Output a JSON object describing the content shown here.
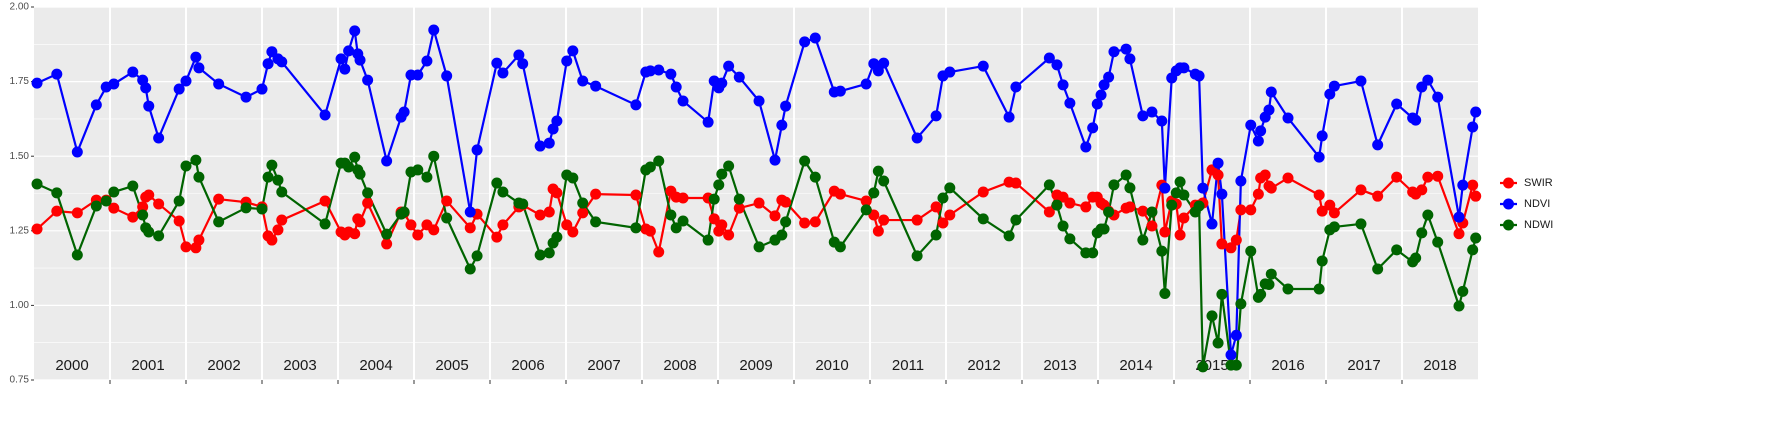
{
  "chart_data": {
    "type": "line",
    "x": [
      2000.04,
      2000.3,
      2000.57,
      2000.82,
      2000.95,
      2001.05,
      2001.3,
      2001.43,
      2001.47,
      2001.51,
      2001.64,
      2001.91,
      2002.0,
      2002.13,
      2002.17,
      2002.43,
      2002.79,
      2003.0,
      2003.08,
      2003.13,
      2003.21,
      2003.26,
      2003.83,
      2004.04,
      2004.09,
      2004.14,
      2004.22,
      2004.26,
      2004.29,
      2004.39,
      2004.64,
      2004.83,
      2004.87,
      2004.96,
      2005.05,
      2005.17,
      2005.26,
      2005.43,
      2005.74,
      2005.83,
      2006.09,
      2006.17,
      2006.38,
      2006.43,
      2006.66,
      2006.78,
      2006.83,
      2006.88,
      2007.01,
      2007.09,
      2007.22,
      2007.39,
      2007.92,
      2008.05,
      2008.11,
      2008.22,
      2008.38,
      2008.45,
      2008.54,
      2008.87,
      2008.95,
      2009.01,
      2009.05,
      2009.14,
      2009.28,
      2009.54,
      2009.75,
      2009.84,
      2009.89,
      2010.14,
      2010.28,
      2010.53,
      2010.61,
      2010.95,
      2011.05,
      2011.11,
      2011.18,
      2011.62,
      2011.87,
      2011.96,
      2012.05,
      2012.49,
      2012.83,
      2012.92,
      2013.36,
      2013.46,
      2013.54,
      2013.63,
      2013.84,
      2013.93,
      2013.99,
      2014.04,
      2014.08,
      2014.14,
      2014.21,
      2014.37,
      2014.42,
      2014.59,
      2014.71,
      2014.84,
      2014.88,
      2014.97,
      2015.03,
      2015.08,
      2015.13,
      2015.28,
      2015.33,
      2015.38,
      2015.5,
      2015.58,
      2015.63,
      2015.75,
      2015.82,
      2015.88,
      2016.01,
      2016.11,
      2016.14,
      2016.2,
      2016.25,
      2016.28,
      2016.5,
      2016.91,
      2016.95,
      2017.05,
      2017.11,
      2017.46,
      2017.68,
      2017.93,
      2018.14,
      2018.18,
      2018.26,
      2018.34,
      2018.47,
      2018.75,
      2018.8,
      2018.93,
      2018.97
    ],
    "series": [
      {
        "name": "SWIR",
        "color": "#ff0000",
        "values": [
          1.256,
          1.316,
          1.31,
          1.353,
          1.353,
          1.326,
          1.296,
          1.33,
          1.363,
          1.37,
          1.34,
          1.283,
          1.196,
          1.193,
          1.219,
          1.356,
          1.346,
          1.33,
          1.233,
          1.219,
          1.253,
          1.286,
          1.35,
          1.246,
          1.236,
          1.246,
          1.24,
          1.29,
          1.28,
          1.343,
          1.206,
          1.313,
          1.31,
          1.27,
          1.236,
          1.27,
          1.253,
          1.35,
          1.26,
          1.306,
          1.229,
          1.27,
          1.33,
          1.336,
          1.303,
          1.313,
          1.39,
          1.377,
          1.27,
          1.246,
          1.31,
          1.373,
          1.37,
          1.256,
          1.249,
          1.179,
          1.383,
          1.363,
          1.36,
          1.36,
          1.29,
          1.249,
          1.27,
          1.236,
          1.326,
          1.343,
          1.3,
          1.353,
          1.346,
          1.276,
          1.28,
          1.383,
          1.373,
          1.35,
          1.303,
          1.249,
          1.286,
          1.286,
          1.33,
          1.276,
          1.303,
          1.38,
          1.413,
          1.41,
          1.313,
          1.37,
          1.363,
          1.343,
          1.33,
          1.363,
          1.363,
          1.343,
          1.336,
          1.316,
          1.303,
          1.326,
          1.33,
          1.316,
          1.266,
          1.403,
          1.246,
          1.35,
          1.34,
          1.236,
          1.293,
          1.336,
          1.336,
          1.343,
          1.454,
          1.437,
          1.206,
          1.193,
          1.219,
          1.32,
          1.32,
          1.373,
          1.427,
          1.437,
          1.4,
          1.393,
          1.427,
          1.37,
          1.316,
          1.336,
          1.31,
          1.387,
          1.366,
          1.43,
          1.38,
          1.373,
          1.387,
          1.43,
          1.433,
          1.24,
          1.276,
          1.403,
          1.366
        ]
      },
      {
        "name": "NDVI",
        "color": "#0000ff",
        "values": [
          1.745,
          1.775,
          1.514,
          1.672,
          1.732,
          1.742,
          1.782,
          1.755,
          1.729,
          1.668,
          1.561,
          1.725,
          1.752,
          1.832,
          1.796,
          1.742,
          1.698,
          1.725,
          1.81,
          1.85,
          1.826,
          1.816,
          1.638,
          1.826,
          1.792,
          1.853,
          1.92,
          1.843,
          1.822,
          1.755,
          1.484,
          1.631,
          1.648,
          1.772,
          1.772,
          1.819,
          1.923,
          1.769,
          1.313,
          1.521,
          1.812,
          1.779,
          1.839,
          1.81,
          1.534,
          1.544,
          1.591,
          1.618,
          1.819,
          1.853,
          1.752,
          1.735,
          1.672,
          1.782,
          1.786,
          1.789,
          1.775,
          1.732,
          1.685,
          1.614,
          1.752,
          1.729,
          1.745,
          1.802,
          1.765,
          1.685,
          1.487,
          1.604,
          1.668,
          1.883,
          1.896,
          1.715,
          1.718,
          1.742,
          1.81,
          1.786,
          1.812,
          1.561,
          1.635,
          1.769,
          1.782,
          1.802,
          1.631,
          1.732,
          1.829,
          1.806,
          1.739,
          1.678,
          1.531,
          1.595,
          1.675,
          1.705,
          1.739,
          1.765,
          1.85,
          1.859,
          1.826,
          1.635,
          1.648,
          1.618,
          1.393,
          1.762,
          1.786,
          1.796,
          1.796,
          1.775,
          1.769,
          1.393,
          1.273,
          1.477,
          1.373,
          0.834,
          0.9,
          1.417,
          1.604,
          1.551,
          1.585,
          1.631,
          1.655,
          1.715,
          1.628,
          1.497,
          1.568,
          1.708,
          1.735,
          1.752,
          1.538,
          1.675,
          1.628,
          1.621,
          1.732,
          1.755,
          1.698,
          1.296,
          1.403,
          1.598,
          1.648
        ]
      },
      {
        "name": "NDWI",
        "color": "#006400",
        "values": [
          1.407,
          1.377,
          1.169,
          1.333,
          1.35,
          1.38,
          1.4,
          1.303,
          1.26,
          1.246,
          1.233,
          1.35,
          1.467,
          1.487,
          1.43,
          1.28,
          1.327,
          1.323,
          1.43,
          1.47,
          1.42,
          1.38,
          1.273,
          1.477,
          1.477,
          1.464,
          1.497,
          1.454,
          1.44,
          1.377,
          1.239,
          1.306,
          1.313,
          1.447,
          1.454,
          1.43,
          1.5,
          1.293,
          1.122,
          1.166,
          1.41,
          1.38,
          1.343,
          1.34,
          1.169,
          1.176,
          1.209,
          1.229,
          1.437,
          1.427,
          1.343,
          1.28,
          1.26,
          1.454,
          1.464,
          1.484,
          1.303,
          1.26,
          1.283,
          1.219,
          1.356,
          1.404,
          1.44,
          1.467,
          1.356,
          1.196,
          1.219,
          1.236,
          1.28,
          1.484,
          1.43,
          1.212,
          1.196,
          1.32,
          1.377,
          1.45,
          1.417,
          1.166,
          1.236,
          1.36,
          1.394,
          1.29,
          1.233,
          1.286,
          1.404,
          1.336,
          1.266,
          1.223,
          1.176,
          1.176,
          1.243,
          1.256,
          1.256,
          1.313,
          1.404,
          1.437,
          1.394,
          1.219,
          1.313,
          1.182,
          1.04,
          1.336,
          1.377,
          1.414,
          1.37,
          1.313,
          1.333,
          0.794,
          0.965,
          0.874,
          1.037,
          0.8,
          0.8,
          1.005,
          1.182,
          1.027,
          1.037,
          1.072,
          1.07,
          1.105,
          1.055,
          1.055,
          1.149,
          1.253,
          1.263,
          1.273,
          1.122,
          1.186,
          1.146,
          1.159,
          1.243,
          1.303,
          1.212,
          0.998,
          1.047,
          1.186,
          1.226
        ]
      }
    ],
    "year_labels": [
      "2000",
      "2001",
      "2002",
      "2003",
      "2004",
      "2005",
      "2006",
      "2007",
      "2008",
      "2009",
      "2010",
      "2011",
      "2012",
      "2013",
      "2014",
      "2015",
      "2016",
      "2017",
      "2018"
    ],
    "xlim": [
      2000,
      2019
    ],
    "xticks": [
      2001,
      2002,
      2003,
      2004,
      2005,
      2006,
      2007,
      2008,
      2009,
      2010,
      2011,
      2012,
      2013,
      2014,
      2015,
      2016,
      2017,
      2018
    ],
    "ylim": [
      0.75,
      2.0
    ],
    "yticks": [
      {
        "value": 0.75,
        "label": "0.75"
      },
      {
        "value": 1.0,
        "label": "1.00"
      },
      {
        "value": 1.25,
        "label": "1.25"
      },
      {
        "value": 1.5,
        "label": "1.50"
      },
      {
        "value": 1.75,
        "label": "1.75"
      },
      {
        "value": 2.0,
        "label": "2.00"
      }
    ],
    "grid": true,
    "legend": "right"
  }
}
